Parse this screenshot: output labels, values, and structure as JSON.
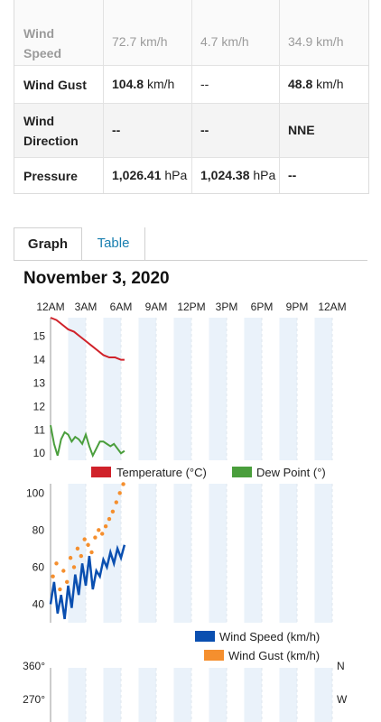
{
  "table": {
    "rows": [
      {
        "label": "Wind Speed",
        "high": "72.7",
        "high_unit": "km/h",
        "low": "4.7",
        "low_unit": "km/h",
        "avg": "34.9",
        "avg_unit": "km/h"
      },
      {
        "label": "Wind Gust",
        "high": "104.8",
        "high_unit": "km/h",
        "low": "--",
        "low_unit": "",
        "avg": "48.8",
        "avg_unit": "km/h"
      },
      {
        "label": "Wind Direction",
        "high": "--",
        "high_unit": "",
        "low": "--",
        "low_unit": "",
        "avg": "NNE",
        "avg_unit": ""
      },
      {
        "label": "Pressure",
        "high": "1,026.41",
        "high_unit": "hPa",
        "low": "1,024.38",
        "low_unit": "hPa",
        "avg": "--",
        "avg_unit": ""
      }
    ]
  },
  "tabs": {
    "graph": "Graph",
    "table": "Table"
  },
  "date_title": "November 3, 2020",
  "colors": {
    "temperature": "#d0222a",
    "dew_point": "#4a9e3c",
    "wind_speed": "#0a4fb0",
    "wind_gust": "#f58f2e",
    "band": "#eaf2fa",
    "link": "#1a7fb0"
  },
  "chart_data": [
    {
      "type": "line",
      "x_ticks": [
        "12AM",
        "3AM",
        "6AM",
        "9AM",
        "12PM",
        "3PM",
        "6PM",
        "9PM",
        "12AM"
      ],
      "y_ticks": [
        "15",
        "14",
        "13",
        "12",
        "11",
        "10"
      ],
      "ylim": [
        9.7,
        15.8
      ],
      "series": [
        {
          "name": "Temperature (°C)",
          "x_hours": [
            0,
            0.5,
            1,
            1.5,
            2,
            2.5,
            3,
            3.5,
            4,
            4.5,
            5,
            5.5,
            6,
            6.3
          ],
          "values": [
            15.8,
            15.7,
            15.5,
            15.3,
            15.2,
            15.0,
            14.8,
            14.6,
            14.4,
            14.2,
            14.1,
            14.1,
            14.0,
            14.0
          ]
        },
        {
          "name": "Dew Point (°)",
          "x_hours": [
            0,
            0.3,
            0.6,
            0.9,
            1.2,
            1.5,
            1.8,
            2.1,
            2.4,
            2.7,
            3.0,
            3.3,
            3.6,
            3.9,
            4.2,
            4.5,
            4.8,
            5.1,
            5.4,
            5.7,
            6.0,
            6.3
          ],
          "values": [
            11.2,
            10.4,
            9.9,
            10.6,
            10.9,
            10.8,
            10.5,
            10.7,
            10.6,
            10.4,
            10.8,
            10.3,
            9.9,
            10.2,
            10.5,
            10.5,
            10.4,
            10.3,
            10.4,
            10.2,
            10.0,
            10.1
          ]
        }
      ],
      "legend": [
        "Temperature (°C)",
        "Dew Point (°)"
      ]
    },
    {
      "type": "line",
      "x_ticks": [
        "12AM",
        "3AM",
        "6AM",
        "9AM",
        "12PM",
        "3PM",
        "6PM",
        "9PM",
        "12AM"
      ],
      "y_ticks": [
        "100",
        "80",
        "60",
        "40"
      ],
      "ylim": [
        30,
        105
      ],
      "series": [
        {
          "name": "Wind Speed (km/h)",
          "x_hours": [
            0,
            0.3,
            0.6,
            0.9,
            1.2,
            1.5,
            1.8,
            2.1,
            2.4,
            2.7,
            3.0,
            3.3,
            3.6,
            3.9,
            4.2,
            4.5,
            4.8,
            5.1,
            5.4,
            5.7,
            6.0,
            6.3
          ],
          "values": [
            40,
            52,
            35,
            45,
            32,
            50,
            38,
            56,
            45,
            62,
            50,
            66,
            48,
            58,
            55,
            64,
            60,
            68,
            62,
            70,
            65,
            72
          ]
        },
        {
          "name": "Wind Gust (km/h)",
          "x_hours": [
            0.2,
            0.5,
            0.8,
            1.1,
            1.4,
            1.7,
            2.0,
            2.3,
            2.6,
            2.9,
            3.2,
            3.5,
            3.8,
            4.1,
            4.4,
            4.7,
            5.0,
            5.3,
            5.6,
            5.9,
            6.2
          ],
          "values": [
            55,
            62,
            48,
            58,
            52,
            65,
            60,
            70,
            66,
            75,
            72,
            68,
            76,
            80,
            78,
            82,
            86,
            90,
            95,
            100,
            104.8
          ]
        }
      ],
      "legend": [
        "Wind Speed (km/h)",
        "Wind Gust (km/h)"
      ]
    },
    {
      "type": "scatter",
      "y_ticks_left": [
        "360°",
        "270°"
      ],
      "y_ticks_right": [
        "N",
        "W"
      ]
    }
  ]
}
